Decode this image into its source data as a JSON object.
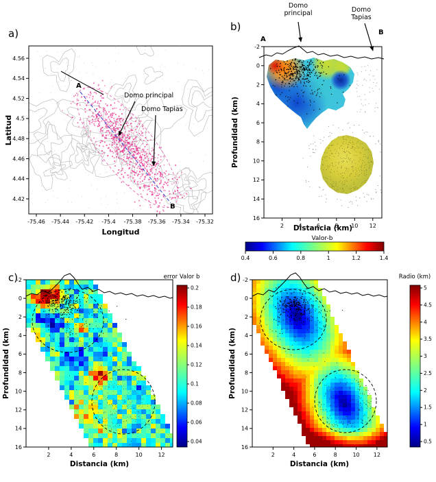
{
  "figure": {
    "background": "#ffffff"
  },
  "chart_data": [
    {
      "panel_label": "a)",
      "type": "scatter",
      "xlabel": "Longitud",
      "ylabel": "Latitud",
      "xticks": [
        -75.46,
        -75.44,
        -75.42,
        -75.4,
        -75.38,
        -75.36,
        -75.34,
        -75.32
      ],
      "yticks": [
        4.56,
        4.54,
        4.52,
        4.5,
        4.48,
        4.46,
        4.44,
        4.42
      ],
      "xlim": [
        -75.47,
        -75.31
      ],
      "ylim": [
        4.41,
        4.57
      ],
      "annotations": [
        "Domo principal",
        "Domo Tapias"
      ],
      "profile_endpoints": [
        "A",
        "B"
      ],
      "marker_color": "#e8358f"
    },
    {
      "panel_label": "b)",
      "type": "heatmap",
      "xlabel": "Distancia (km)",
      "ylabel": "Profundidad (km)",
      "xticks": [
        2,
        4,
        6,
        8,
        10,
        12
      ],
      "yticks": [
        -2,
        0,
        2,
        4,
        6,
        8,
        10,
        12,
        14,
        16
      ],
      "xlim": [
        0,
        13
      ],
      "ylim": [
        16,
        -2
      ],
      "colorbar": {
        "label": "Valor-b",
        "ticks": [
          0.4,
          0.6,
          0.8,
          1,
          1.2,
          1.4
        ],
        "min": 0.4,
        "max": 1.4,
        "orientation": "horizontal",
        "colormap": "jet"
      },
      "annotations": [
        "Domo principal",
        "Domo Tapias"
      ],
      "profile_endpoints": [
        "A",
        "B"
      ]
    },
    {
      "panel_label": "c)",
      "type": "heatmap",
      "xlabel": "Distancia (km)",
      "ylabel": "Profundidad (km)",
      "xticks": [
        2,
        4,
        6,
        8,
        10,
        12
      ],
      "yticks": [
        -2,
        0,
        2,
        4,
        6,
        8,
        10,
        12,
        14,
        16
      ],
      "xlim": [
        0,
        13
      ],
      "ylim": [
        16,
        -2
      ],
      "colorbar": {
        "label": "error Valor b",
        "ticks": [
          0.2,
          0.18,
          0.16,
          0.14,
          0.12,
          0.1,
          0.08,
          0.06,
          0.04
        ],
        "min": 0.04,
        "max": 0.2,
        "orientation": "vertical",
        "colormap": "jet"
      }
    },
    {
      "panel_label": "d)",
      "type": "heatmap",
      "xlabel": "Distancia (km)",
      "ylabel": "Profundidad (km)",
      "xticks": [
        2,
        4,
        6,
        8,
        10,
        12
      ],
      "yticks": [
        -2,
        0,
        2,
        4,
        6,
        8,
        10,
        12,
        14,
        16
      ],
      "xlim": [
        0,
        13
      ],
      "ylim": [
        16,
        -2
      ],
      "colorbar": {
        "label": "Radio (km)",
        "ticks": [
          5,
          4.5,
          4,
          3.5,
          3,
          2.5,
          2,
          1.5,
          1,
          0.5
        ],
        "min": 0.5,
        "max": 5,
        "orientation": "vertical",
        "colormap": "jet"
      }
    }
  ]
}
